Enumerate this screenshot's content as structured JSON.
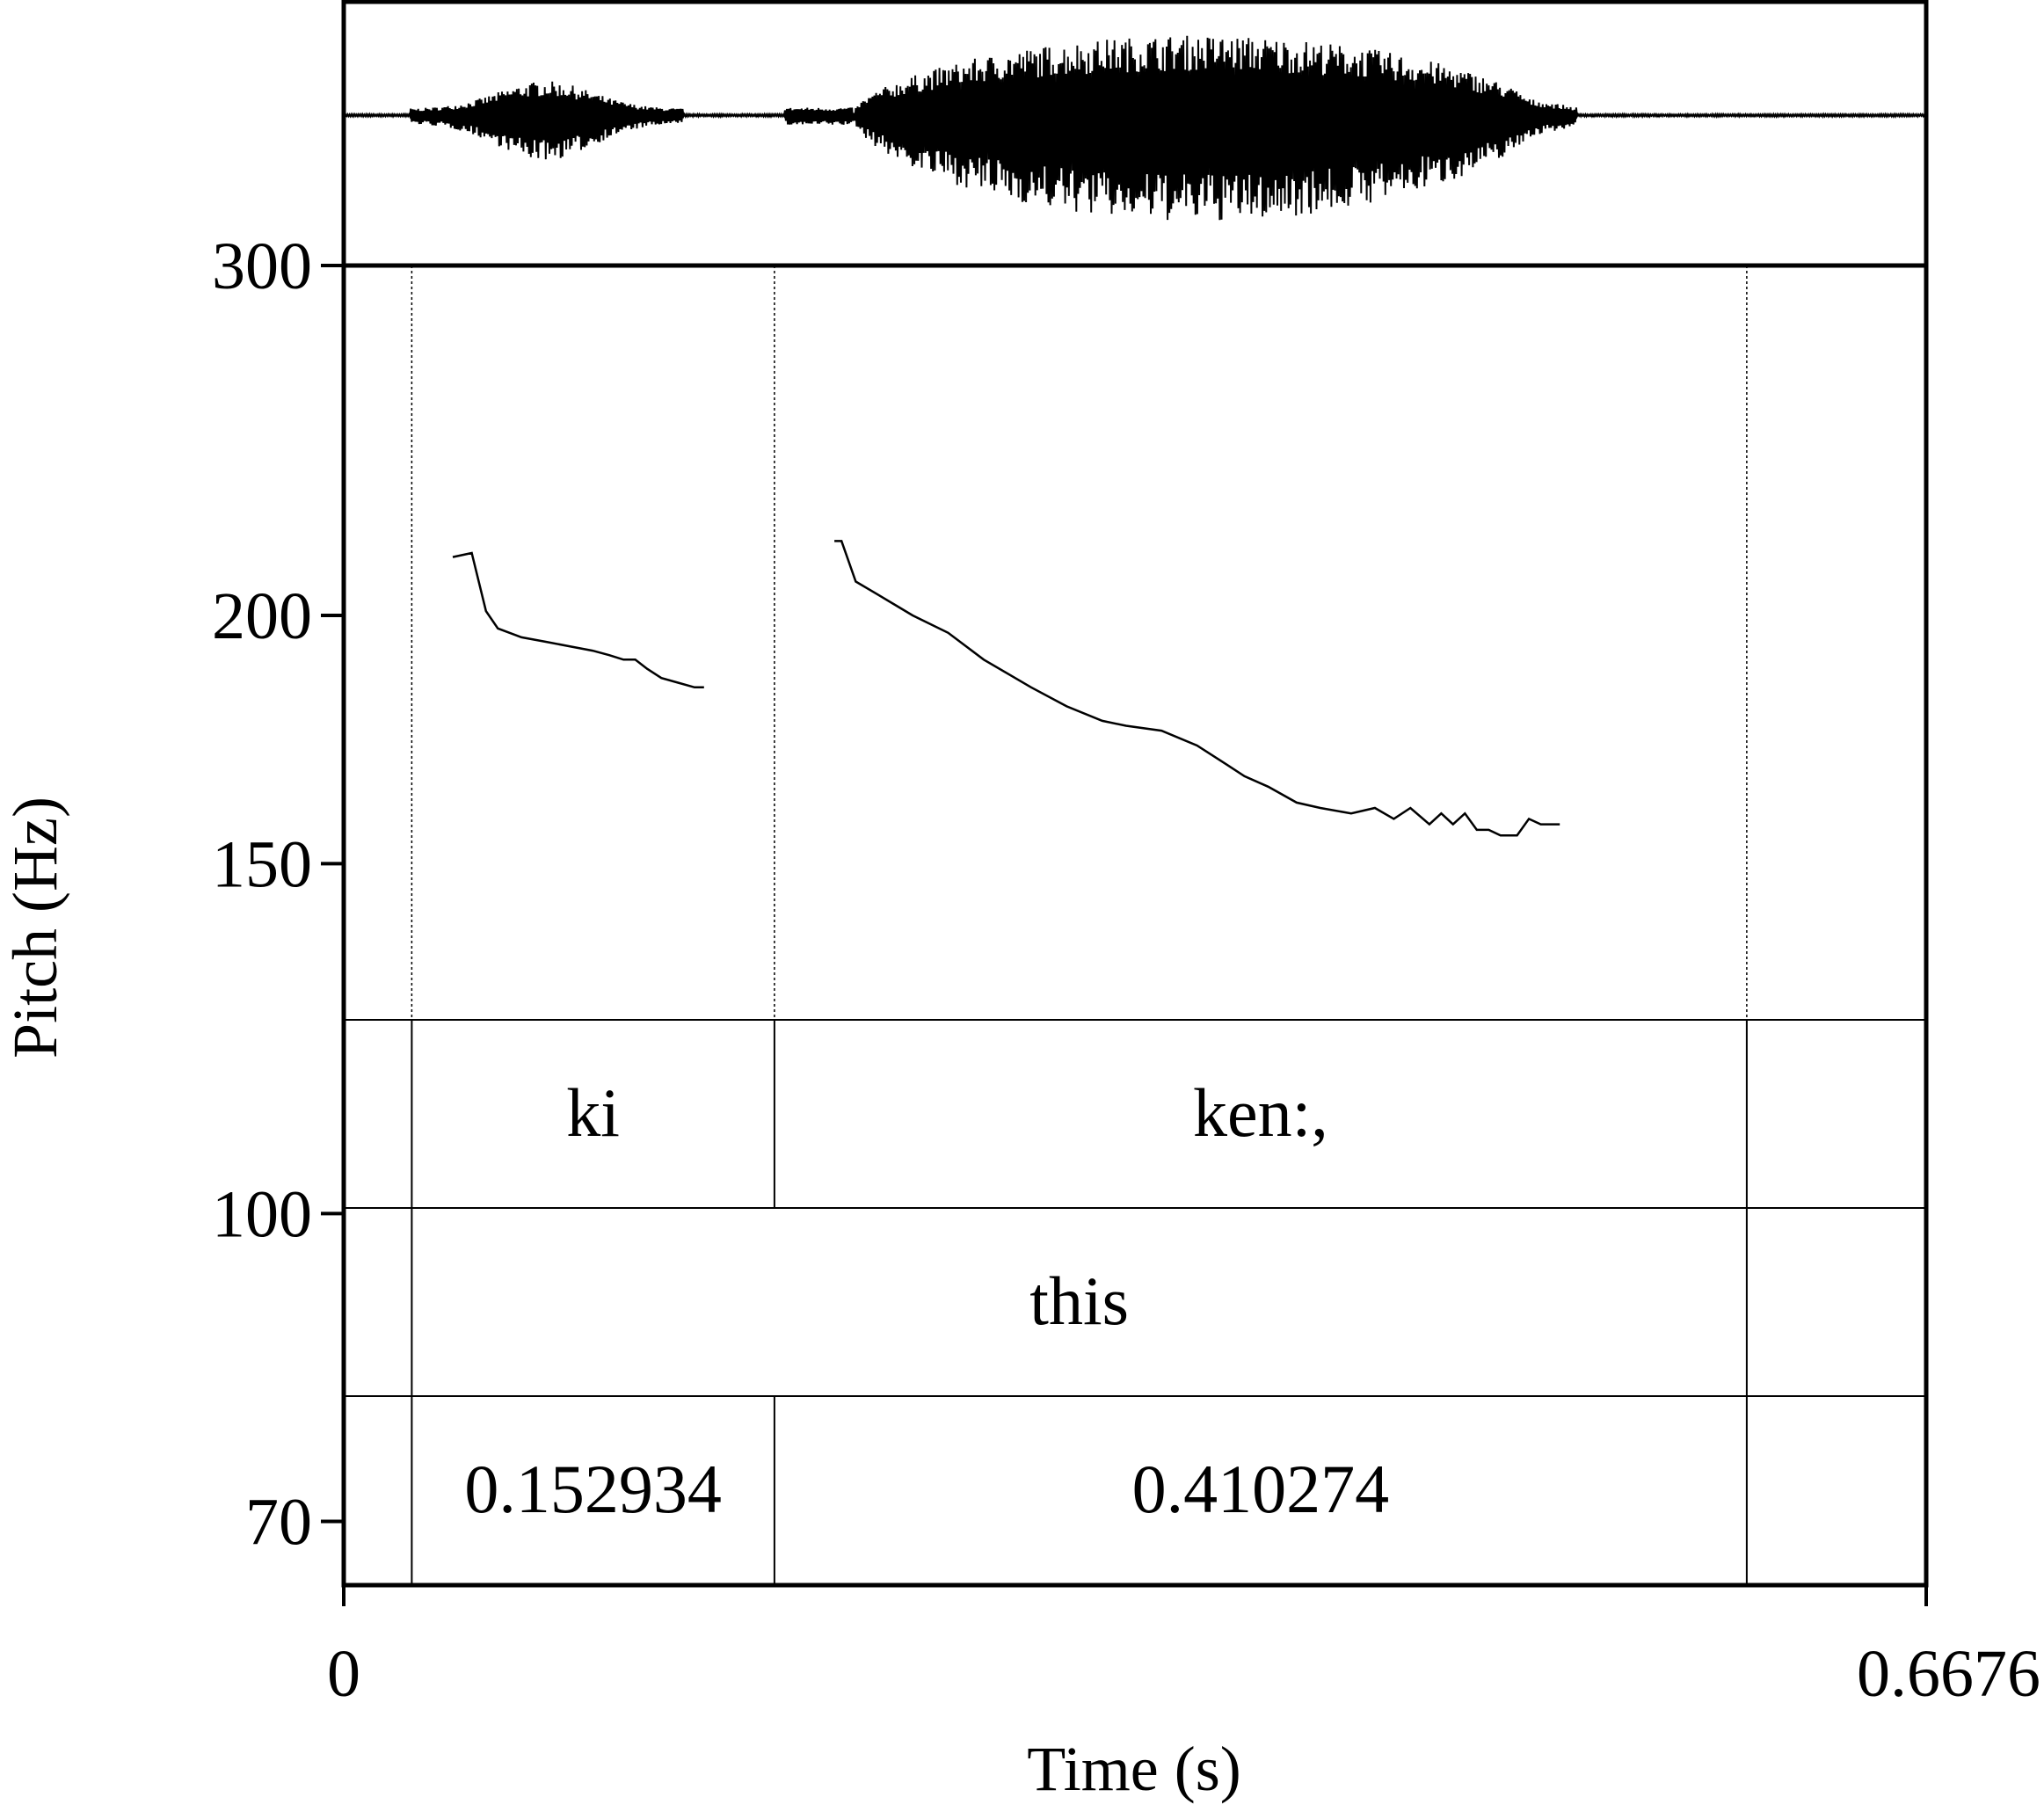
{
  "chart_data": {
    "type": "line",
    "title": "",
    "xlabel": "Time (s)",
    "ylabel": "Pitch (Hz)",
    "xlim": [
      0,
      0.6676
    ],
    "ylim": [
      65,
      300
    ],
    "y_scale": "log",
    "x_tick_labels": [
      "0",
      "0.6676"
    ],
    "y_ticks": [
      300,
      200,
      150,
      100,
      70
    ],
    "y_tick_labels": [
      "300",
      "200",
      "150",
      "100",
      "70"
    ],
    "grid": false,
    "series": [
      {
        "name": "",
        "segments": [
          {
            "x": [
              0.046,
              0.054,
              0.06,
              0.065,
              0.075,
              0.085,
              0.095,
              0.105,
              0.112,
              0.118,
              0.123,
              0.128,
              0.134,
              0.141,
              0.148,
              0.152
            ],
            "y": [
              214,
              215,
              201,
              197,
              195,
              194,
              193,
              192,
              191,
              190,
              190,
              188,
              186,
              185,
              184,
              184
            ]
          },
          {
            "x": [
              0.207,
              0.21,
              0.216,
              0.225,
              0.24,
              0.255,
              0.27,
              0.29,
              0.305,
              0.32,
              0.33,
              0.345,
              0.36,
              0.37,
              0.38,
              0.39,
              0.402,
              0.412,
              0.425,
              0.435,
              0.443,
              0.45,
              0.458,
              0.463,
              0.468,
              0.473,
              0.478,
              0.483,
              0.488,
              0.495,
              0.5,
              0.505,
              0.508,
              0.513
            ],
            "y": [
              218,
              218,
              208,
              205,
              200,
              196,
              190,
              184,
              180,
              177,
              176,
              175,
              172,
              169,
              166,
              164,
              161,
              160,
              159,
              160,
              158,
              160,
              157,
              159,
              157,
              159,
              156,
              156,
              155,
              155,
              158,
              157,
              157,
              157
            ]
          }
        ]
      }
    ],
    "waveform": {
      "label": "",
      "description_note": ""
    },
    "tiers": [
      {
        "name": "",
        "intervals": [
          {
            "start": 0,
            "end": 0.0287,
            "text": ""
          },
          {
            "start": 0.0287,
            "end": 0.1817,
            "text": "ki"
          },
          {
            "start": 0.1817,
            "end": 0.5919,
            "text": "ken:,"
          },
          {
            "start": 0.5919,
            "end": 0.6676,
            "text": ""
          }
        ]
      },
      {
        "name": "",
        "intervals": [
          {
            "start": 0,
            "end": 0.0287,
            "text": ""
          },
          {
            "start": 0.0287,
            "end": 0.5919,
            "text": "this"
          },
          {
            "start": 0.5919,
            "end": 0.6676,
            "text": ""
          }
        ]
      },
      {
        "name": "",
        "intervals": [
          {
            "start": 0,
            "end": 0.0287,
            "text": ""
          },
          {
            "start": 0.0287,
            "end": 0.1817,
            "text": "0.152934"
          },
          {
            "start": 0.1817,
            "end": 0.5919,
            "text": "0.410274"
          },
          {
            "start": 0.5919,
            "end": 0.6676,
            "text": ""
          }
        ]
      }
    ],
    "boundaries": [
      0.0287,
      0.1817,
      0.5919
    ]
  }
}
